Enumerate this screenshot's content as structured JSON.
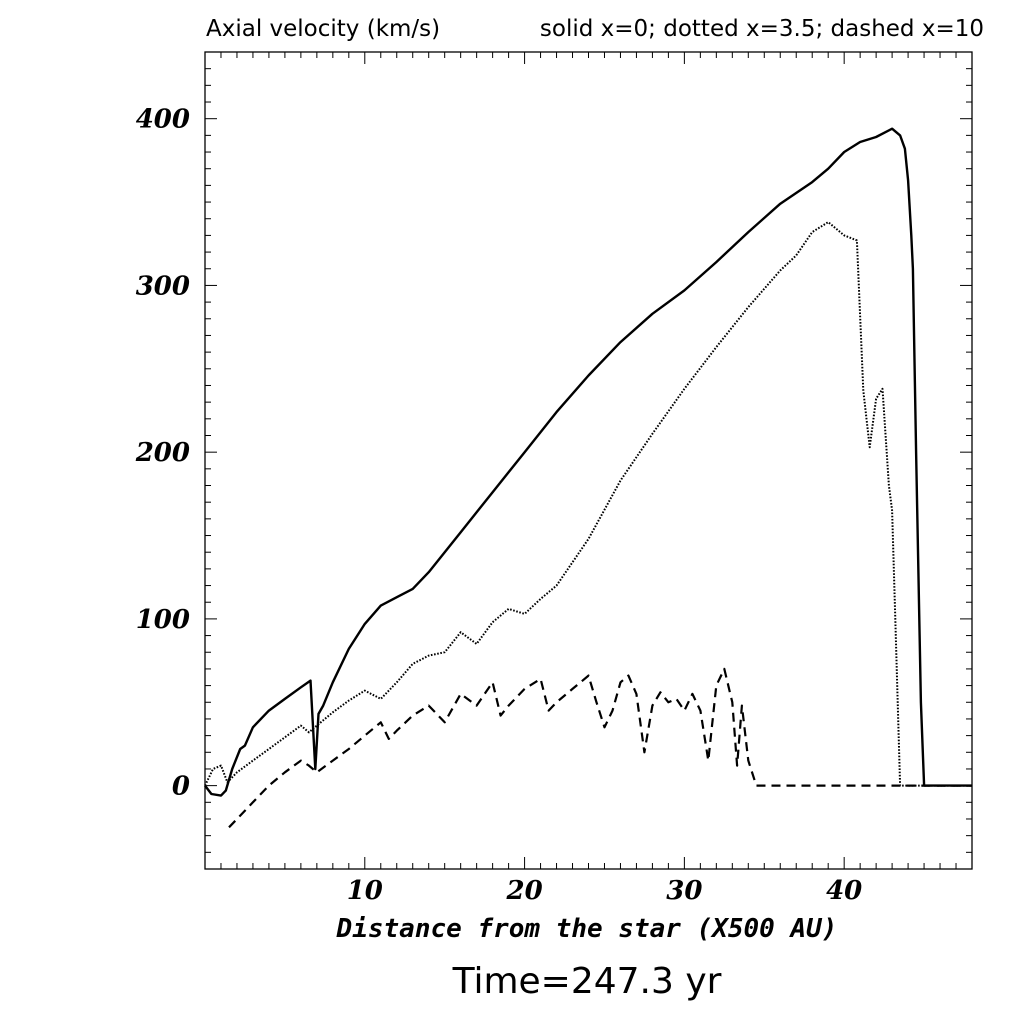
{
  "header": {
    "left": "Axial velocity (km/s)",
    "right": "solid x=0; dotted x=3.5; dashed x=10"
  },
  "footer": {
    "time": "Time=247.3 yr"
  },
  "chart_data": {
    "type": "line",
    "xlabel": "Distance from the star (X500 AU)",
    "ylabel": "",
    "xlim": [
      0,
      48
    ],
    "ylim": [
      -50,
      440
    ],
    "xticks": [
      10,
      20,
      30,
      40
    ],
    "yticks": [
      0,
      100,
      200,
      300,
      400
    ],
    "grid": false,
    "series": [
      {
        "name": "solid x=0",
        "style": "solid",
        "x": [
          0,
          0.4,
          1,
          1.3,
          1.7,
          2.2,
          2.5,
          3,
          4,
          5,
          6,
          6.6,
          6.9,
          7.1,
          7.4,
          8,
          9,
          10,
          11,
          12,
          13,
          14,
          16,
          18,
          20,
          22,
          24,
          26,
          28,
          30,
          32,
          34,
          36,
          38,
          39,
          40,
          41,
          42,
          43,
          43.5,
          43.8,
          44,
          44.2,
          44.3,
          44.5,
          44.8,
          45,
          48
        ],
        "y": [
          0,
          -5,
          -6,
          -3,
          10,
          22,
          24,
          35,
          45,
          52,
          59,
          63,
          10,
          43,
          48,
          62,
          82,
          97,
          108,
          113,
          118,
          128,
          152,
          176,
          200,
          224,
          246,
          266,
          283,
          297,
          314,
          332,
          349,
          362,
          370,
          380,
          386,
          389,
          394,
          390,
          382,
          363,
          330,
          310,
          200,
          50,
          0,
          0
        ]
      },
      {
        "name": "dotted x=3.5",
        "style": "dotted",
        "x": [
          0,
          0.5,
          1,
          1.4,
          2,
          3,
          4,
          5,
          6,
          6.5,
          7,
          8,
          9,
          10,
          11,
          12,
          13,
          14,
          15,
          16,
          17,
          18,
          19,
          20,
          21,
          22,
          24,
          26,
          28,
          30,
          32,
          34,
          36,
          37,
          38,
          39,
          40,
          40.8,
          41.2,
          41.6,
          42,
          42.4,
          42.8,
          43,
          43.2,
          43.5,
          48
        ],
        "y": [
          0,
          10,
          12,
          2,
          8,
          15,
          22,
          29,
          36,
          32,
          36,
          44,
          51,
          57,
          52,
          62,
          73,
          78,
          80,
          92,
          85,
          98,
          106,
          103,
          112,
          120,
          148,
          183,
          211,
          238,
          263,
          287,
          309,
          318,
          332,
          338,
          330,
          327,
          237,
          203,
          232,
          238,
          180,
          165,
          100,
          0,
          0
        ]
      },
      {
        "name": "dashed x=10",
        "style": "dashed",
        "x": [
          1.5,
          2,
          3,
          4,
          5,
          6,
          6.5,
          7,
          8,
          9,
          10,
          11,
          11.5,
          12,
          13,
          14,
          15,
          16,
          17,
          18,
          18.5,
          19,
          20,
          21,
          21.5,
          22,
          23,
          23.5,
          24,
          24.5,
          25,
          25.5,
          26,
          26.5,
          27,
          27.5,
          28,
          28.5,
          29,
          29.5,
          30,
          30.5,
          31,
          31.5,
          32,
          32.5,
          33,
          33.3,
          33.6,
          34,
          34.5,
          48
        ],
        "y": [
          -25,
          -20,
          -10,
          0,
          8,
          15,
          12,
          8,
          15,
          22,
          30,
          38,
          28,
          33,
          42,
          48,
          38,
          55,
          48,
          62,
          42,
          48,
          58,
          64,
          45,
          50,
          58,
          62,
          66,
          50,
          35,
          45,
          62,
          66,
          55,
          20,
          48,
          56,
          50,
          52,
          45,
          55,
          45,
          15,
          60,
          70,
          50,
          12,
          48,
          15,
          0,
          0
        ]
      }
    ]
  }
}
